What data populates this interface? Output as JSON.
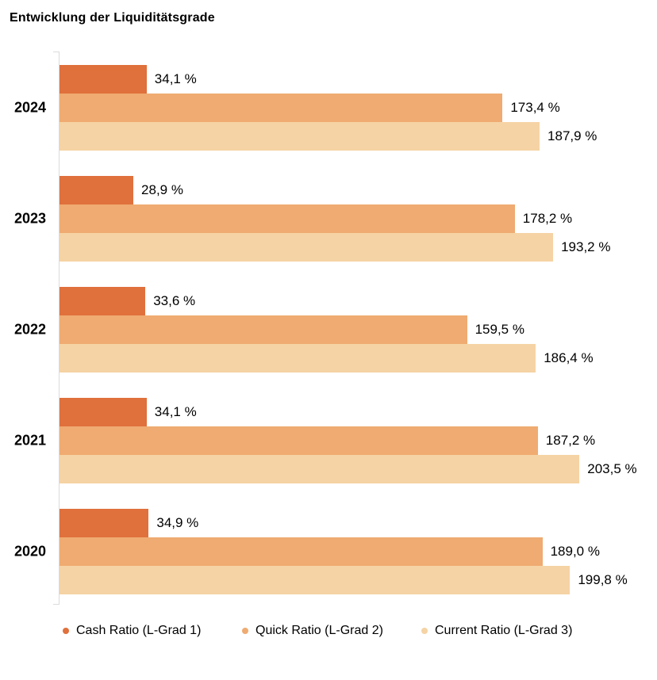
{
  "title": "Entwicklung der Liquiditätsgrade",
  "colors": {
    "background": "#FFFFFF",
    "axis": "#DBDBDB",
    "text": "#000000",
    "series1": "#E0703C",
    "series2": "#EFAB71",
    "series3": "#F5D3A4"
  },
  "chart_data": {
    "type": "bar",
    "orientation": "horizontal",
    "title": "Entwicklung der Liquiditätsgrade",
    "categories": [
      "2024",
      "2023",
      "2022",
      "2021",
      "2020"
    ],
    "series": [
      {
        "name": "Cash Ratio (L-Grad 1)",
        "color": "#E0703C",
        "values": [
          34.1,
          28.9,
          33.6,
          34.1,
          34.9
        ],
        "labels": [
          "34,1 %",
          "28,9 %",
          "33,6 %",
          "34,1 %",
          "34,9 %"
        ]
      },
      {
        "name": "Quick Ratio (L-Grad 2)",
        "color": "#EFAB71",
        "values": [
          173.4,
          178.2,
          159.5,
          187.2,
          189.0
        ],
        "labels": [
          "173,4 %",
          "178,2 %",
          "159,5 %",
          "187,2 %",
          "189,0 %"
        ]
      },
      {
        "name": "Current Ratio (L-Grad 3)",
        "color": "#F5D3A4",
        "values": [
          187.9,
          193.2,
          186.4,
          203.5,
          199.8
        ],
        "labels": [
          "187,9 %",
          "193,2 %",
          "186,4 %",
          "203,5 %",
          "199,8 %"
        ]
      }
    ],
    "value_suffix": " %",
    "xlim": [
      0,
      210
    ],
    "grid": false,
    "legend_position": "bottom",
    "data_labels": true
  }
}
